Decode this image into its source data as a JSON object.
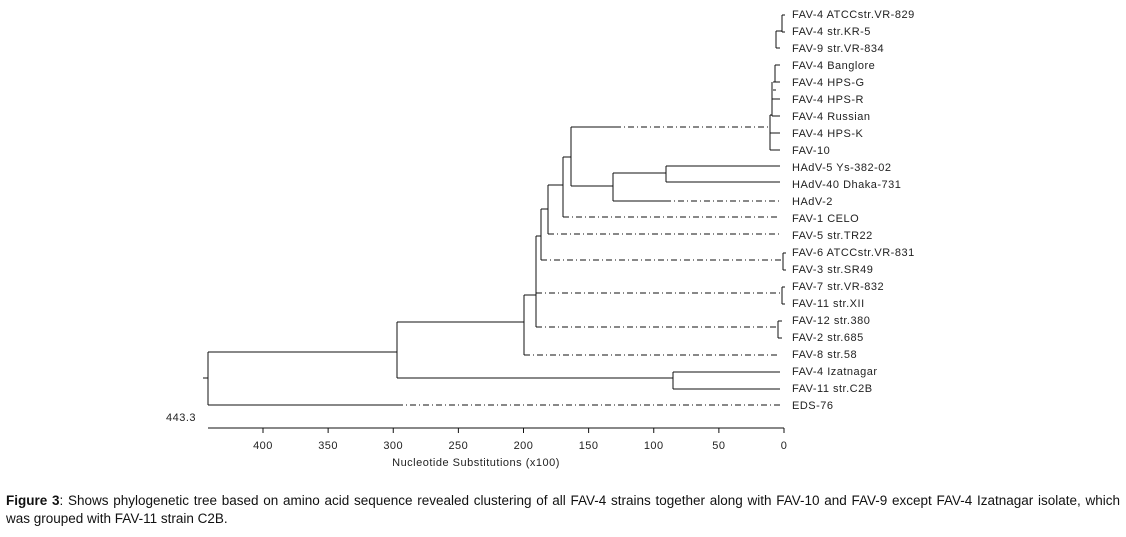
{
  "tree": {
    "leaves": [
      "FAV-4 ATCCstr.VR-829",
      "FAV-4 str.KR-5",
      "FAV-9 str.VR-834",
      "FAV-4 Banglore",
      "FAV-4 HPS-G",
      "FAV-4 HPS-R",
      "FAV-4 Russian",
      "FAV-4 HPS-K",
      "FAV-10",
      "HAdV-5 Ys-382-02",
      "HAdV-40 Dhaka-731",
      "HAdV-2",
      "FAV-1 CELO",
      "FAV-5 str.TR22",
      "FAV-6 ATCCstr.VR-831",
      "FAV-3 str.SR49",
      "FAV-7 str.VR-832",
      "FAV-11 str.XII",
      "FAV-12 str.380",
      "FAV-2 str.685",
      "FAV-8 str.58",
      "FAV-4 Izatnagar",
      "FAV-11 str.C2B",
      "EDS-76"
    ],
    "root_label": "443.3",
    "axis": {
      "label": "Nucleotide Substitutions (x100)",
      "lim": [
        443.3,
        0
      ],
      "ticks": [
        400,
        350,
        300,
        250,
        200,
        150,
        100,
        50,
        0
      ]
    }
  },
  "caption": {
    "label": "Figure 3",
    "text": ": Shows phylogenetic tree based on amino acid sequence revealed clustering of all FAV-4 strains together along with FAV-10 and FAV-9 except FAV-4 Izatnagar isolate, which was grouped with FAV-11 strain C2B."
  }
}
